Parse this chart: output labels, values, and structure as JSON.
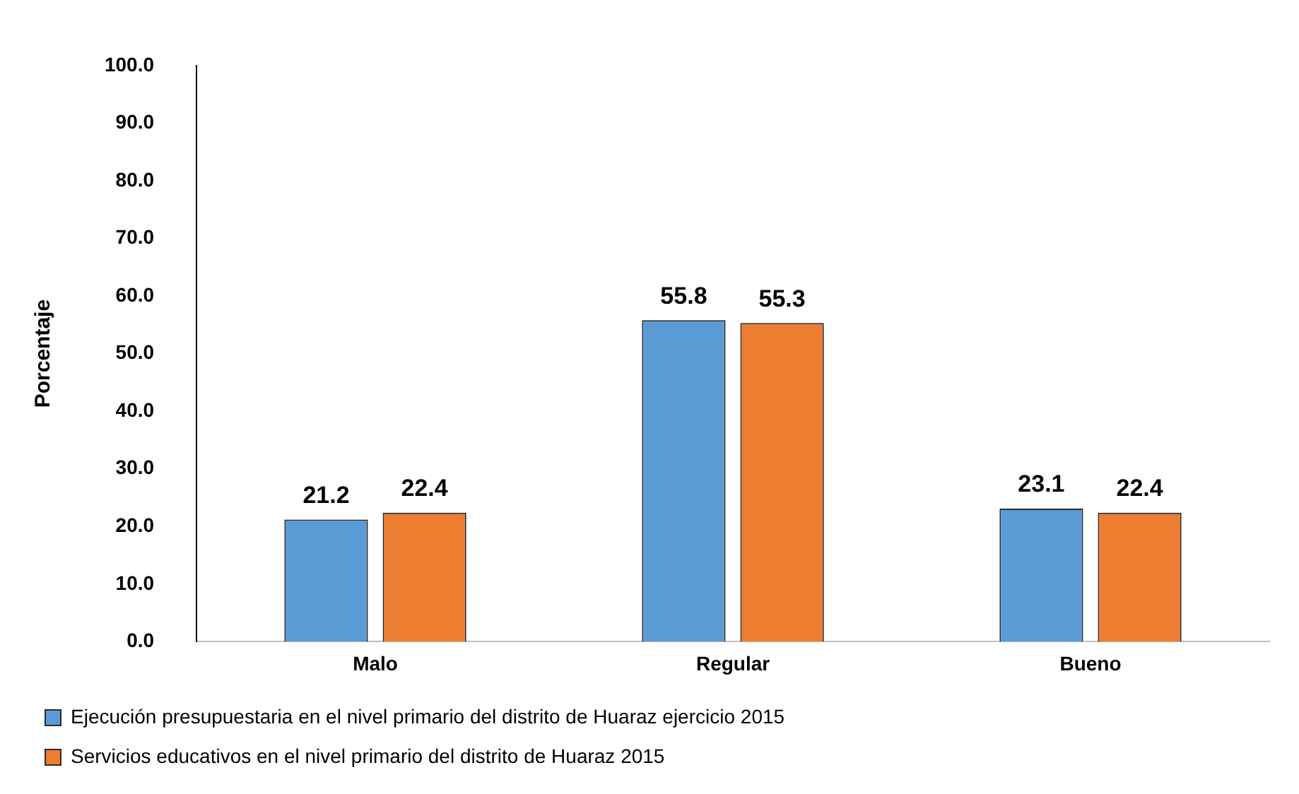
{
  "chart_data": {
    "type": "bar",
    "ylabel": "Porcentaje",
    "categories": [
      "Malo",
      "Regular",
      "Bueno"
    ],
    "series": [
      {
        "name": "Ejecución presupuestaria en el nivel primario del distrito de Huaraz ejercicio 2015",
        "color": "#5b9bd5",
        "values": [
          21.2,
          55.8,
          23.1
        ]
      },
      {
        "name": "Servicios educativos en el nivel primario del distrito de Huaraz 2015",
        "color": "#ed7d31",
        "values": [
          22.4,
          55.3,
          22.4
        ]
      }
    ],
    "ylim": [
      0,
      100
    ],
    "yticks": [
      {
        "value": 0,
        "label": "0.0"
      },
      {
        "value": 10,
        "label": "10.0"
      },
      {
        "value": 20,
        "label": "20.0"
      },
      {
        "value": 30,
        "label": "30.0"
      },
      {
        "value": 40,
        "label": "40.0"
      },
      {
        "value": 50,
        "label": "50.0"
      },
      {
        "value": 60,
        "label": "60.0"
      },
      {
        "value": 70,
        "label": "70.0"
      },
      {
        "value": 80,
        "label": "80.0"
      },
      {
        "value": 90,
        "label": "90.0"
      },
      {
        "value": 100,
        "label": "100.0"
      }
    ],
    "grid": false,
    "legend": "bottom",
    "data_labels": true
  }
}
